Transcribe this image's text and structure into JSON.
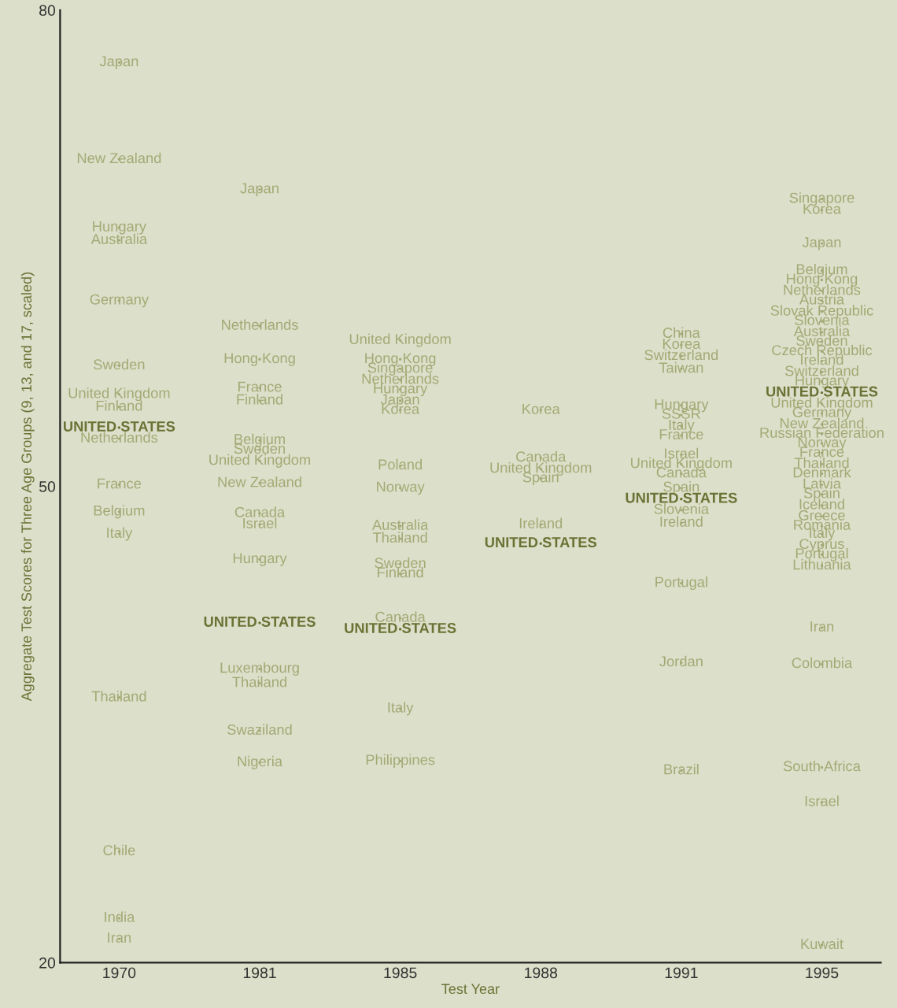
{
  "chart_data": {
    "type": "scatter",
    "xlabel": "Test Year",
    "ylabel": "Aggregate Test Scores for Three Age Groups (9, 13, and 17, scaled)",
    "categories": [
      "1970",
      "1981",
      "1985",
      "1988",
      "1991",
      "1995"
    ],
    "ylim": [
      20,
      80
    ],
    "yticks": [
      20,
      50,
      80
    ],
    "grid": false,
    "legend": false,
    "marker": "none",
    "series": [
      {
        "color": "#a3a975",
        "values": [
          76.7,
          68.7,
          59.2,
          54.8,
          59.6,
          68.1
        ],
        "value_labels": [
          "Japan",
          "Japan",
          "United Kingdom",
          "Korea",
          "China",
          "Singapore"
        ]
      },
      {
        "color": "#a3a975",
        "values": [
          70.6,
          60.1,
          58.0,
          51.8,
          58.9,
          67.4
        ],
        "value_labels": [
          "New Zealand",
          "Netherlands",
          "Hong Kong",
          "Canada",
          "Korea",
          "Korea"
        ]
      },
      {
        "color": "#a3a975",
        "values": [
          66.3,
          58.0,
          57.4,
          51.1,
          58.2,
          65.3
        ],
        "value_labels": [
          "Hungary",
          "Hong Kong",
          "Singapore",
          "United Kingdom",
          "Switzerland",
          "Japan"
        ]
      },
      {
        "color": "#a3a975",
        "values": [
          65.5,
          56.2,
          56.7,
          50.5,
          57.4,
          63.6
        ],
        "value_labels": [
          "Australia",
          "France",
          "Netherlands",
          "Spain",
          "Taiwan",
          "Belgium"
        ]
      },
      {
        "color": "#a3a975",
        "values": [
          61.7,
          55.4,
          56.1,
          47.6,
          55.1,
          63.0
        ],
        "value_labels": [
          "Germany",
          "Finland",
          "Hungary",
          "Ireland",
          "Hungary",
          "Hong Kong"
        ]
      },
      {
        "colors": [
          "#a3a975",
          "#a3a975",
          "#a3a975",
          "#6b7235",
          "#a3a975",
          "#a3a975"
        ],
        "values": [
          57.6,
          52.9,
          55.4,
          46.4,
          54.5,
          62.3
        ],
        "value_labels": [
          "Sweden",
          "Belgium",
          "Japan",
          "UNITED STATES",
          "SSSR",
          "Netherlands"
        ]
      },
      {
        "color": "#a3a975",
        "values": [
          55.8,
          52.3,
          54.8,
          null,
          53.8,
          61.7
        ],
        "value_labels": [
          "United Kingdom",
          "Sweden",
          "Korea",
          null,
          "Italy",
          "Austria"
        ]
      },
      {
        "color": "#a3a975",
        "values": [
          55.0,
          51.6,
          51.3,
          null,
          53.2,
          61.0
        ],
        "value_labels": [
          "Finland",
          "United Kingdom",
          "Poland",
          null,
          "France",
          "Slovak Republic"
        ]
      },
      {
        "colors": [
          "#6b7235",
          "#a3a975",
          "#a3a975",
          "#a3a975",
          "#a3a975",
          "#a3a975"
        ],
        "values": [
          53.7,
          50.2,
          49.9,
          null,
          52.0,
          60.4
        ],
        "value_labels": [
          "UNITED STATES",
          "New Zealand",
          "Norway",
          null,
          "Israel",
          "Slovenia"
        ]
      },
      {
        "color": "#a3a975",
        "values": [
          53.0,
          48.3,
          47.5,
          null,
          51.4,
          59.7
        ],
        "value_labels": [
          "Netherlands",
          "Canada",
          "Australia",
          null,
          "United Kingdom",
          "Australia"
        ]
      },
      {
        "color": "#a3a975",
        "values": [
          50.1,
          47.6,
          46.7,
          null,
          50.8,
          59.1
        ],
        "value_labels": [
          "France",
          "Israel",
          "Thailand",
          null,
          "Canada",
          "Sweden"
        ]
      },
      {
        "color": "#a3a975",
        "values": [
          48.4,
          45.4,
          45.1,
          null,
          49.9,
          58.5
        ],
        "value_labels": [
          "Belgium",
          "Hungary",
          "Sweden",
          null,
          "Spain",
          "Czech Republic"
        ]
      },
      {
        "colors": [
          "#a3a975",
          "#6b7235",
          "#a3a975",
          "#a3a975",
          "#6b7235",
          "#a3a975"
        ],
        "values": [
          47.0,
          41.4,
          44.5,
          null,
          49.2,
          57.9
        ],
        "value_labels": [
          "Italy",
          "UNITED STATES",
          "Finland",
          null,
          "UNITED STATES",
          "Ireland"
        ]
      },
      {
        "color": "#a3a975",
        "values": [
          36.7,
          38.5,
          41.7,
          null,
          48.5,
          57.2
        ],
        "value_labels": [
          "Thailand",
          "Luxembourg",
          "Canada",
          null,
          "Slovenia",
          "Switzerland"
        ]
      },
      {
        "colors": [
          "#a3a975",
          "#a3a975",
          "#6b7235",
          "#a3a975",
          "#a3a975",
          "#a3a975"
        ],
        "values": [
          27.0,
          37.6,
          41.0,
          null,
          47.7,
          56.6
        ],
        "value_labels": [
          "Chile",
          "Thailand",
          "UNITED STATES",
          null,
          "Ireland",
          "Hungary"
        ]
      },
      {
        "colors": [
          "#a3a975",
          "#a3a975",
          "#a3a975",
          "#a3a975",
          "#a3a975",
          "#6b7235"
        ],
        "values": [
          22.8,
          34.6,
          36.0,
          null,
          43.9,
          55.9
        ],
        "value_labels": [
          "India",
          "Swaziland",
          "Italy",
          null,
          "Portugal",
          "UNITED STATES"
        ]
      },
      {
        "color": "#a3a975",
        "values": [
          21.5,
          32.6,
          32.7,
          null,
          38.9,
          55.2
        ],
        "value_labels": [
          "Iran",
          "Nigeria",
          "Philippines",
          null,
          "Jordan",
          "United Kingdom"
        ]
      },
      {
        "color": "#a3a975",
        "values": [
          null,
          null,
          null,
          null,
          32.1,
          54.6
        ],
        "value_labels": [
          null,
          null,
          null,
          null,
          "Brazil",
          "Germany"
        ]
      },
      {
        "color": "#a3a975",
        "values": [
          null,
          null,
          null,
          null,
          null,
          53.9
        ],
        "value_labels": [
          null,
          null,
          null,
          null,
          null,
          "New Zealand"
        ]
      },
      {
        "color": "#a3a975",
        "values": [
          null,
          null,
          null,
          null,
          null,
          53.3
        ],
        "value_labels": [
          null,
          null,
          null,
          null,
          null,
          "Russian Federation"
        ]
      },
      {
        "color": "#a3a975",
        "values": [
          null,
          null,
          null,
          null,
          null,
          52.7
        ],
        "value_labels": [
          null,
          null,
          null,
          null,
          null,
          "Norway"
        ]
      },
      {
        "color": "#a3a975",
        "values": [
          null,
          null,
          null,
          null,
          null,
          52.1
        ],
        "value_labels": [
          null,
          null,
          null,
          null,
          null,
          "France"
        ]
      },
      {
        "color": "#a3a975",
        "values": [
          null,
          null,
          null,
          null,
          null,
          51.4
        ],
        "value_labels": [
          null,
          null,
          null,
          null,
          null,
          "Thailand"
        ]
      },
      {
        "color": "#a3a975",
        "values": [
          null,
          null,
          null,
          null,
          null,
          50.8
        ],
        "value_labels": [
          null,
          null,
          null,
          null,
          null,
          "Denmark"
        ]
      },
      {
        "color": "#a3a975",
        "values": [
          null,
          null,
          null,
          null,
          null,
          50.1
        ],
        "value_labels": [
          null,
          null,
          null,
          null,
          null,
          "Latvia"
        ]
      },
      {
        "color": "#a3a975",
        "values": [
          null,
          null,
          null,
          null,
          null,
          49.5
        ],
        "value_labels": [
          null,
          null,
          null,
          null,
          null,
          "Spain"
        ]
      },
      {
        "color": "#a3a975",
        "values": [
          null,
          null,
          null,
          null,
          null,
          48.8
        ],
        "value_labels": [
          null,
          null,
          null,
          null,
          null,
          "Iceland"
        ]
      },
      {
        "color": "#a3a975",
        "values": [
          null,
          null,
          null,
          null,
          null,
          48.1
        ],
        "value_labels": [
          null,
          null,
          null,
          null,
          null,
          "Greece"
        ]
      },
      {
        "color": "#a3a975",
        "values": [
          null,
          null,
          null,
          null,
          null,
          47.5
        ],
        "value_labels": [
          null,
          null,
          null,
          null,
          null,
          "Romania"
        ]
      },
      {
        "color": "#a3a975",
        "values": [
          null,
          null,
          null,
          null,
          null,
          47.0
        ],
        "value_labels": [
          null,
          null,
          null,
          null,
          null,
          "Italy"
        ]
      },
      {
        "color": "#a3a975",
        "values": [
          null,
          null,
          null,
          null,
          null,
          46.3
        ],
        "value_labels": [
          null,
          null,
          null,
          null,
          null,
          "Cyprus"
        ]
      },
      {
        "color": "#a3a975",
        "values": [
          null,
          null,
          null,
          null,
          null,
          45.7
        ],
        "value_labels": [
          null,
          null,
          null,
          null,
          null,
          "Portugal"
        ]
      },
      {
        "color": "#a3a975",
        "values": [
          null,
          null,
          null,
          null,
          null,
          45.0
        ],
        "value_labels": [
          null,
          null,
          null,
          null,
          null,
          "Lithuania"
        ]
      },
      {
        "color": "#a3a975",
        "values": [
          null,
          null,
          null,
          null,
          null,
          41.1
        ],
        "value_labels": [
          null,
          null,
          null,
          null,
          null,
          "Iran"
        ]
      },
      {
        "color": "#a3a975",
        "values": [
          null,
          null,
          null,
          null,
          null,
          38.8
        ],
        "value_labels": [
          null,
          null,
          null,
          null,
          null,
          "Colombia"
        ]
      },
      {
        "color": "#a3a975",
        "values": [
          null,
          null,
          null,
          null,
          null,
          32.3
        ],
        "value_labels": [
          null,
          null,
          null,
          null,
          null,
          "South Africa"
        ]
      },
      {
        "color": "#a3a975",
        "values": [
          null,
          null,
          null,
          null,
          null,
          30.1
        ],
        "value_labels": [
          null,
          null,
          null,
          null,
          null,
          "Israel"
        ]
      },
      {
        "color": "#a3a975",
        "values": [
          null,
          null,
          null,
          null,
          null,
          21.1
        ],
        "value_labels": [
          null,
          null,
          null,
          null,
          null,
          "Kuwait"
        ]
      }
    ]
  }
}
